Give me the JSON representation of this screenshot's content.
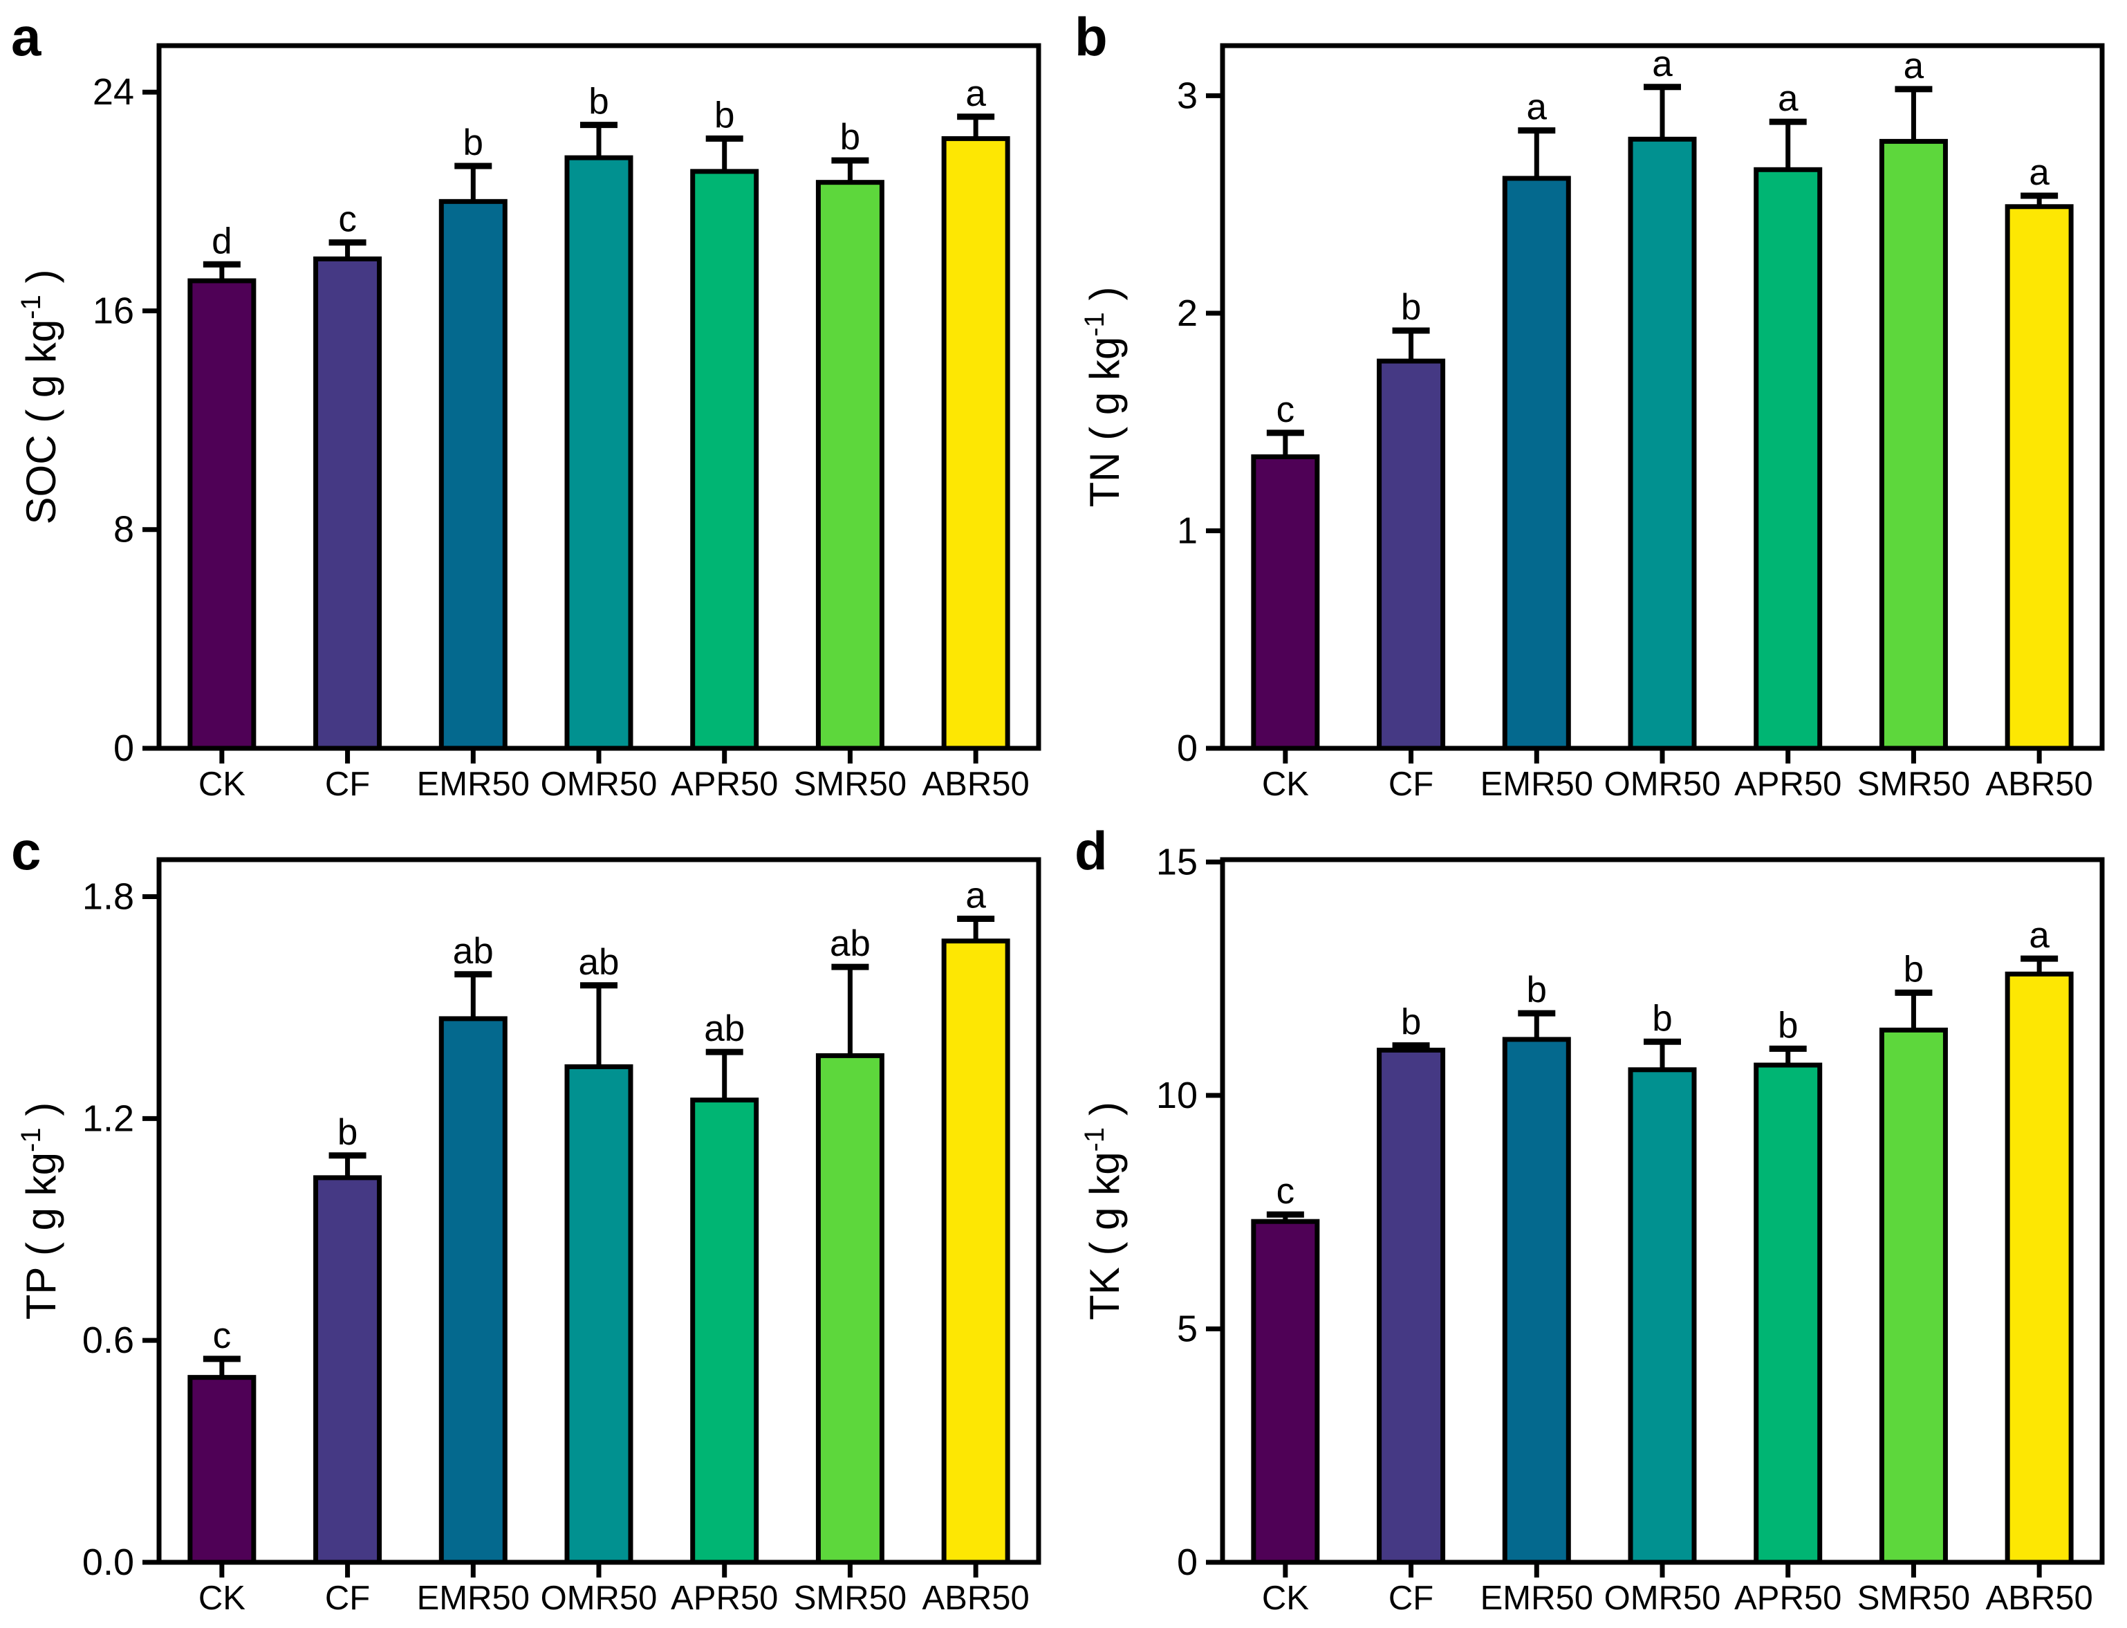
{
  "figure": {
    "background": "#FFFFFF",
    "text_color": "#000000",
    "bar_border_color": "#000000",
    "categories": [
      "CK",
      "CF",
      "EMR50",
      "OMR50",
      "APR50",
      "SMR50",
      "ABR50"
    ],
    "bar_colors": [
      "#4F0156",
      "#453984",
      "#04698E",
      "#019190",
      "#00B573",
      "#5DD73C",
      "#FDE703"
    ]
  },
  "chart_data": [
    {
      "type": "bar",
      "panel_label": "a",
      "ylabel": "SOC ( g kg-1 )",
      "ylabel_base": "SOC ( g kg",
      "ylabel_sup": "-1",
      "ylabel_end": " )",
      "categories": [
        "CK",
        "CF",
        "EMR50",
        "OMR50",
        "APR50",
        "SMR50",
        "ABR50"
      ],
      "values": [
        17.1,
        17.9,
        20.0,
        21.6,
        21.1,
        20.7,
        22.3
      ],
      "errors": [
        0.6,
        0.6,
        1.3,
        1.2,
        1.2,
        0.8,
        0.8
      ],
      "sig_letters": [
        "d",
        "c",
        "b",
        "b",
        "b",
        "b",
        "a"
      ],
      "yticks": [
        {
          "v": 0,
          "label": "0"
        },
        {
          "v": 8,
          "label": "8"
        },
        {
          "v": 16,
          "label": "16"
        },
        {
          "v": 24,
          "label": "24"
        }
      ],
      "ylim": [
        0,
        25.7
      ],
      "grid": false,
      "legend": "none"
    },
    {
      "type": "bar",
      "panel_label": "b",
      "ylabel": "TN ( g kg-1 )",
      "ylabel_base": "TN ( g kg",
      "ylabel_sup": "-1",
      "ylabel_end": " )",
      "categories": [
        "CK",
        "CF",
        "EMR50",
        "OMR50",
        "APR50",
        "SMR50",
        "ABR50"
      ],
      "values": [
        1.34,
        1.78,
        2.62,
        2.8,
        2.66,
        2.79,
        2.49
      ],
      "errors": [
        0.11,
        0.14,
        0.22,
        0.24,
        0.22,
        0.24,
        0.05
      ],
      "sig_letters": [
        "c",
        "b",
        "a",
        "a",
        "a",
        "a",
        "a"
      ],
      "yticks": [
        {
          "v": 0,
          "label": "0"
        },
        {
          "v": 1,
          "label": "1"
        },
        {
          "v": 2,
          "label": "2"
        },
        {
          "v": 3,
          "label": "3"
        }
      ],
      "ylim": [
        0,
        3.23
      ],
      "grid": false,
      "legend": "none"
    },
    {
      "type": "bar",
      "panel_label": "c",
      "ylabel": "TP ( g kg-1 )",
      "ylabel_base": "TP ( g kg",
      "ylabel_sup": "-1",
      "ylabel_end": " )",
      "categories": [
        "CK",
        "CF",
        "EMR50",
        "OMR50",
        "APR50",
        "SMR50",
        "ABR50"
      ],
      "values": [
        0.5,
        1.04,
        1.47,
        1.34,
        1.25,
        1.37,
        1.68
      ],
      "errors": [
        0.05,
        0.06,
        0.12,
        0.22,
        0.13,
        0.24,
        0.06
      ],
      "sig_letters": [
        "c",
        "b",
        "ab",
        "ab",
        "ab",
        "ab",
        "a"
      ],
      "yticks": [
        {
          "v": 0,
          "label": "0.0"
        },
        {
          "v": 0.6,
          "label": "0.6"
        },
        {
          "v": 1.2,
          "label": "1.2"
        },
        {
          "v": 1.8,
          "label": "1.8"
        }
      ],
      "ylim": [
        0,
        1.9
      ],
      "grid": false,
      "legend": "none"
    },
    {
      "type": "bar",
      "panel_label": "d",
      "ylabel": "TK ( g kg-1 )",
      "ylabel_base": "TK ( g kg",
      "ylabel_sup": "-1",
      "ylabel_end": " )",
      "categories": [
        "CK",
        "CF",
        "EMR50",
        "OMR50",
        "APR50",
        "SMR50",
        "ABR50"
      ],
      "values": [
        7.3,
        10.97,
        11.2,
        10.55,
        10.65,
        11.4,
        12.6
      ],
      "errors": [
        0.15,
        0.1,
        0.56,
        0.6,
        0.35,
        0.8,
        0.33
      ],
      "sig_letters": [
        "c",
        "b",
        "b",
        "b",
        "b",
        "b",
        "a"
      ],
      "yticks": [
        {
          "v": 0,
          "label": "0"
        },
        {
          "v": 5,
          "label": "5"
        },
        {
          "v": 10,
          "label": "10"
        },
        {
          "v": 15,
          "label": "15"
        }
      ],
      "ylim": [
        0,
        15.05
      ],
      "grid": false,
      "legend": "none"
    }
  ]
}
